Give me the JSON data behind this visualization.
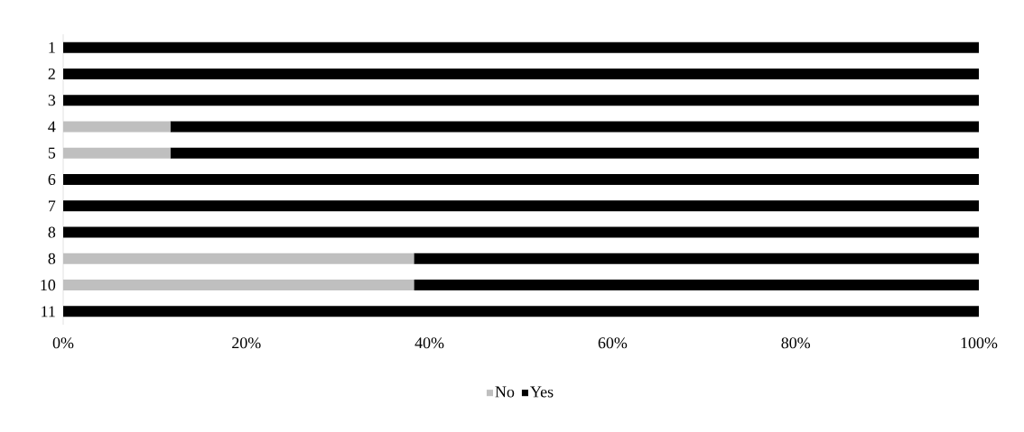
{
  "chart_data": {
    "type": "bar",
    "orientation": "horizontal",
    "stacked": true,
    "categories": [
      "1",
      "2",
      "3",
      "4",
      "5",
      "6",
      "7",
      "8",
      "8",
      "10",
      "11"
    ],
    "series": [
      {
        "name": "No",
        "color": "#bfbfbf",
        "values": [
          0,
          0,
          0,
          11.7,
          11.7,
          0,
          0,
          0,
          38.3,
          38.3,
          0
        ]
      },
      {
        "name": "Yes",
        "color": "#000000",
        "values": [
          100,
          100,
          100,
          88.3,
          88.3,
          100,
          100,
          100,
          61.7,
          61.7,
          100
        ]
      }
    ],
    "xlim": [
      0,
      100
    ],
    "xticks": [
      {
        "value": 0,
        "label": "0%"
      },
      {
        "value": 20,
        "label": "20%"
      },
      {
        "value": 40,
        "label": "40%"
      },
      {
        "value": 60,
        "label": "60%"
      },
      {
        "value": 80,
        "label": "80%"
      },
      {
        "value": 100,
        "label": "100%"
      }
    ],
    "legend": "bottom"
  }
}
